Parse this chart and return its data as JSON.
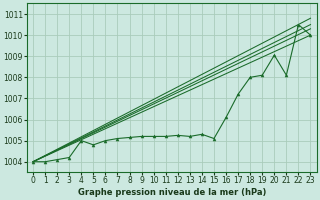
{
  "title": "Graphe pression niveau de la mer (hPa)",
  "bg_color": "#cce8e0",
  "grid_color": "#aaccbb",
  "line_color": "#1a6b2a",
  "marker_color": "#1a6b2a",
  "xlim": [
    -0.5,
    23.5
  ],
  "ylim": [
    1003.5,
    1011.5
  ],
  "xticks": [
    0,
    1,
    2,
    3,
    4,
    5,
    6,
    7,
    8,
    9,
    10,
    11,
    12,
    13,
    14,
    15,
    16,
    17,
    18,
    19,
    20,
    21,
    22,
    23
  ],
  "yticks": [
    1004,
    1005,
    1006,
    1007,
    1008,
    1009,
    1010,
    1011
  ],
  "data_series": [
    1004.0,
    1004.0,
    1004.1,
    1004.2,
    1005.0,
    1004.8,
    1005.0,
    1005.1,
    1005.15,
    1005.2,
    1005.2,
    1005.2,
    1005.25,
    1005.2,
    1005.3,
    1005.1,
    1006.1,
    1007.2,
    1008.0,
    1008.1,
    1009.05,
    1008.1,
    1010.5,
    1010.0
  ],
  "trend_lines": [
    {
      "x0": 0,
      "y0": 1004.0,
      "x1": 23,
      "y1": 1010.0
    },
    {
      "x0": 0,
      "y0": 1004.0,
      "x1": 23,
      "y1": 1010.3
    },
    {
      "x0": 0,
      "y0": 1004.0,
      "x1": 23,
      "y1": 1010.5
    },
    {
      "x0": 0,
      "y0": 1004.0,
      "x1": 23,
      "y1": 1010.8
    }
  ],
  "xlabel_fontsize": 6,
  "xlabel_bold": true,
  "tick_fontsize": 5.5,
  "tick_color": "#1a3a1a",
  "spine_color": "#1a6b2a"
}
